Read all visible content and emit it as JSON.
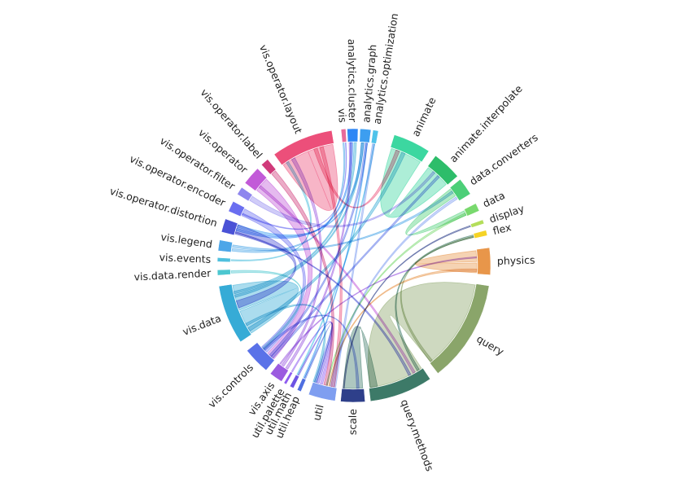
{
  "chart_data": {
    "type": "chord",
    "groups": [
      {
        "name": "vis",
        "color": "#e86a9a",
        "start": -0.095,
        "end": -0.06
      },
      {
        "name": "analytics.cluster",
        "color": "#2e86f5",
        "start": -0.05,
        "end": 0.03
      },
      {
        "name": "analytics.graph",
        "color": "#3d9ef0",
        "start": 0.045,
        "end": 0.125
      },
      {
        "name": "analytics.optimization",
        "color": "#4fc3ea",
        "start": 0.14,
        "end": 0.18
      },
      {
        "name": "animate",
        "color": "#3cd7a0",
        "start": 0.3,
        "end": 0.58
      },
      {
        "name": "animate.interpolate",
        "color": "#2dbd6a",
        "start": 0.64,
        "end": 0.86
      },
      {
        "name": "data.converters",
        "color": "#4ccf78",
        "start": 0.89,
        "end": 1.02
      },
      {
        "name": "data",
        "color": "#79d96e",
        "start": 1.1,
        "end": 1.16
      },
      {
        "name": "display",
        "color": "#b4de5b",
        "start": 1.23,
        "end": 1.26
      },
      {
        "name": "flex",
        "color": "#f5d325",
        "start": 1.31,
        "end": 1.35
      },
      {
        "name": "physics",
        "color": "#e8964a",
        "start": 1.44,
        "end": 1.64
      },
      {
        "name": "query",
        "color": "#8aa56a",
        "start": 1.72,
        "end": 2.48
      },
      {
        "name": "query.methods",
        "color": "#3d7a68",
        "start": 2.55,
        "end": 3.02
      },
      {
        "name": "scale",
        "color": "#2e3f8a",
        "start": 3.06,
        "end": 3.24
      },
      {
        "name": "util",
        "color": "#7f9ef0",
        "start": 3.28,
        "end": 3.48
      },
      {
        "name": "util.heap",
        "color": "#4f6fe0",
        "start": 3.54,
        "end": 3.57
      },
      {
        "name": "util.math",
        "color": "#6d54e4",
        "start": 3.6,
        "end": 3.63
      },
      {
        "name": "util.palette",
        "color": "#8e5cf0",
        "start": 3.66,
        "end": 3.68
      },
      {
        "name": "vis.axis",
        "color": "#9c5be0",
        "start": 3.7,
        "end": 3.8
      },
      {
        "name": "vis.controls",
        "color": "#5a72e8",
        "start": 3.84,
        "end": 4.04
      },
      {
        "name": "vis.data",
        "color": "#36abd6",
        "start": 4.12,
        "end": 4.56
      },
      {
        "name": "vis.data.render",
        "color": "#4cc7d0",
        "start": 4.64,
        "end": 4.68
      },
      {
        "name": "vis.events",
        "color": "#4fc0de",
        "start": 4.74,
        "end": 4.77
      },
      {
        "name": "vis.legend",
        "color": "#4da6e8",
        "start": 4.82,
        "end": 4.9
      },
      {
        "name": "vis.operator.distortion",
        "color": "#4a52d6",
        "start": 4.96,
        "end": 5.06
      },
      {
        "name": "vis.operator.encoder",
        "color": "#6a6ef0",
        "start": 5.12,
        "end": 5.2
      },
      {
        "name": "vis.operator.filter",
        "color": "#8f86ee",
        "start": 5.26,
        "end": 5.32
      },
      {
        "name": "vis.operator",
        "color": "#c25ad8",
        "start": 5.36,
        "end": 5.5
      },
      {
        "name": "vis.operator.label",
        "color": "#d03a7a",
        "start": 5.54,
        "end": 5.6
      },
      {
        "name": "vis.operator.layout",
        "color": "#ec4f7a",
        "start": 5.66,
        "end": 6.12
      }
    ],
    "chords": [
      {
        "source": 4,
        "target": 5,
        "s": [
          0.31,
          0.57
        ],
        "t": [
          0.65,
          0.85
        ]
      },
      {
        "source": 11,
        "target": 12,
        "s": [
          1.73,
          2.47
        ],
        "t": [
          2.56,
          3.01
        ]
      },
      {
        "source": 10,
        "target": 10,
        "s": [
          1.45,
          1.54
        ],
        "t": [
          1.55,
          1.63
        ]
      },
      {
        "source": 29,
        "target": 29,
        "s": [
          5.67,
          5.9
        ],
        "t": [
          5.9,
          6.11
        ]
      },
      {
        "source": 20,
        "target": 20,
        "s": [
          4.13,
          4.33
        ],
        "t": [
          4.34,
          4.55
        ]
      },
      {
        "source": 12,
        "target": 13,
        "s": [
          2.95,
          3.01
        ],
        "t": [
          3.07,
          3.23
        ]
      },
      {
        "source": 27,
        "target": 19,
        "s": [
          5.37,
          5.49
        ],
        "t": [
          3.85,
          3.92
        ]
      },
      {
        "source": 24,
        "target": 20,
        "s": [
          4.97,
          5.05
        ],
        "t": [
          4.36,
          4.42
        ]
      },
      {
        "source": 6,
        "target": 7,
        "s": [
          0.9,
          0.97
        ],
        "t": [
          1.11,
          1.15
        ]
      },
      {
        "source": 25,
        "target": 19,
        "s": [
          5.13,
          5.19
        ],
        "t": [
          3.93,
          3.99
        ]
      },
      {
        "source": 14,
        "target": 3,
        "s": [
          3.29,
          3.31
        ],
        "t": [
          0.15,
          0.17
        ]
      },
      {
        "source": 18,
        "target": 1,
        "s": [
          3.71,
          3.73
        ],
        "t": [
          -0.04,
          -0.02
        ]
      },
      {
        "source": 14,
        "target": 6,
        "s": [
          3.32,
          3.34
        ],
        "t": [
          0.98,
          1.0
        ]
      },
      {
        "source": 13,
        "target": 8,
        "s": [
          3.22,
          3.23
        ],
        "t": [
          1.24,
          1.25
        ]
      },
      {
        "source": 12,
        "target": 9,
        "s": [
          2.58,
          2.6
        ],
        "t": [
          1.32,
          1.34
        ]
      },
      {
        "source": 11,
        "target": 9,
        "s": [
          2.45,
          2.47
        ],
        "t": [
          1.33,
          1.34
        ]
      },
      {
        "source": 20,
        "target": 2,
        "s": [
          4.45,
          4.47
        ],
        "t": [
          0.06,
          0.08
        ]
      },
      {
        "source": 20,
        "target": 1,
        "s": [
          4.48,
          4.5
        ],
        "t": [
          0.0,
          0.02
        ]
      },
      {
        "source": 23,
        "target": 0,
        "s": [
          4.83,
          4.85
        ],
        "t": [
          -0.09,
          -0.08
        ]
      },
      {
        "source": 22,
        "target": 29,
        "s": [
          4.75,
          4.76
        ],
        "t": [
          5.7,
          5.72
        ]
      },
      {
        "source": 21,
        "target": 19,
        "s": [
          4.65,
          4.67
        ],
        "t": [
          3.96,
          3.98
        ]
      },
      {
        "source": 18,
        "target": 29,
        "s": [
          3.75,
          3.77
        ],
        "t": [
          5.75,
          5.78
        ]
      },
      {
        "source": 17,
        "target": 14,
        "s": [
          3.665,
          3.675
        ],
        "t": [
          3.4,
          3.42
        ]
      },
      {
        "source": 16,
        "target": 14,
        "s": [
          3.605,
          3.615
        ],
        "t": [
          3.43,
          3.45
        ]
      },
      {
        "source": 15,
        "target": 14,
        "s": [
          3.545,
          3.555
        ],
        "t": [
          3.45,
          3.47
        ]
      },
      {
        "source": 19,
        "target": 2,
        "s": [
          3.88,
          3.9
        ],
        "t": [
          0.09,
          0.11
        ]
      },
      {
        "source": 28,
        "target": 14,
        "s": [
          5.55,
          5.59
        ],
        "t": [
          3.36,
          3.39
        ]
      },
      {
        "source": 26,
        "target": 5,
        "s": [
          5.27,
          5.31
        ],
        "t": [
          0.7,
          0.72
        ]
      },
      {
        "source": 29,
        "target": 4,
        "s": [
          5.95,
          5.98
        ],
        "t": [
          0.35,
          0.38
        ]
      },
      {
        "source": 29,
        "target": 14,
        "s": [
          6.0,
          6.03
        ],
        "t": [
          3.3,
          3.33
        ]
      },
      {
        "source": 1,
        "target": 24,
        "s": [
          -0.03,
          -0.01
        ],
        "t": [
          5.0,
          5.02
        ]
      },
      {
        "source": 2,
        "target": 24,
        "s": [
          0.06,
          0.08
        ],
        "t": [
          5.03,
          5.05
        ]
      },
      {
        "source": 20,
        "target": 4,
        "s": [
          4.15,
          4.18
        ],
        "t": [
          0.4,
          0.43
        ]
      },
      {
        "source": 20,
        "target": 14,
        "s": [
          4.2,
          4.22
        ],
        "t": [
          3.46,
          3.48
        ]
      },
      {
        "source": 19,
        "target": 5,
        "s": [
          3.86,
          3.88
        ],
        "t": [
          0.75,
          0.77
        ]
      },
      {
        "source": 10,
        "target": 14,
        "s": [
          1.6,
          1.62
        ],
        "t": [
          3.34,
          3.35
        ]
      },
      {
        "source": 7,
        "target": 14,
        "s": [
          1.13,
          1.15
        ],
        "t": [
          3.36,
          3.37
        ]
      },
      {
        "source": 25,
        "target": 0,
        "s": [
          5.14,
          5.15
        ],
        "t": [
          -0.07,
          -0.065
        ]
      },
      {
        "source": 23,
        "target": 6,
        "s": [
          4.86,
          4.88
        ],
        "t": [
          0.92,
          0.94
        ]
      },
      {
        "source": 27,
        "target": 12,
        "s": [
          5.4,
          5.42
        ],
        "t": [
          2.62,
          2.64
        ]
      },
      {
        "source": 24,
        "target": 12,
        "s": [
          4.98,
          4.99
        ],
        "t": [
          2.66,
          2.68
        ]
      },
      {
        "source": 19,
        "target": 13,
        "s": [
          3.95,
          3.97
        ],
        "t": [
          3.1,
          3.12
        ]
      },
      {
        "source": 18,
        "target": 10,
        "s": [
          3.78,
          3.79
        ],
        "t": [
          1.5,
          1.51
        ]
      },
      {
        "source": 2,
        "target": 15,
        "s": [
          0.1,
          0.11
        ],
        "t": [
          3.555,
          3.565
        ]
      },
      {
        "source": 3,
        "target": 16,
        "s": [
          0.16,
          0.17
        ],
        "t": [
          3.615,
          3.625
        ]
      }
    ]
  }
}
